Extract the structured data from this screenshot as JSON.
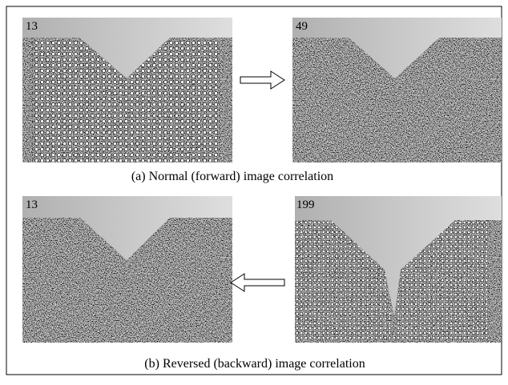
{
  "panels": [
    {
      "label": "13"
    },
    {
      "label": "49"
    },
    {
      "label": "13"
    },
    {
      "label": "199"
    }
  ],
  "captions": [
    "(a) Normal (forward) image correlation",
    "(b) Reversed (backward) image correlation"
  ]
}
